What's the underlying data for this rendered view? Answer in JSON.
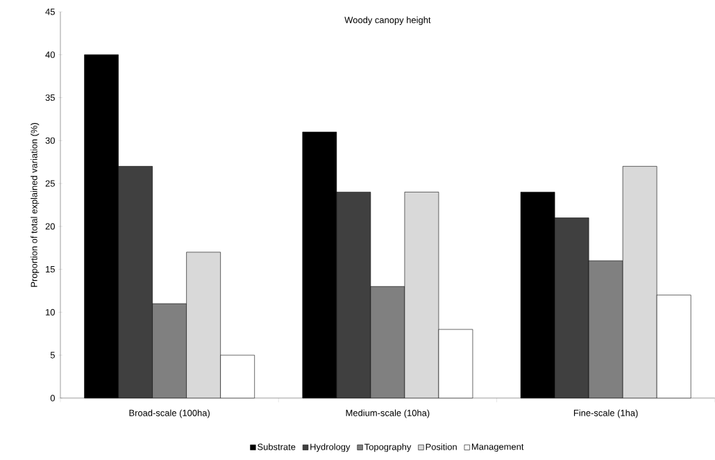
{
  "chart_data": {
    "type": "bar",
    "title": "Woody canopy height",
    "ylabel": "Proportion of total explained variation (%)",
    "categories": [
      "Broad-scale (100ha)",
      "Medium-scale (10ha)",
      "Fine-scale (1ha)"
    ],
    "series": [
      {
        "name": "Substrate",
        "color": "#000000",
        "values": [
          40,
          31,
          24
        ]
      },
      {
        "name": "Hydrology",
        "color": "#404040",
        "values": [
          27,
          24,
          21
        ]
      },
      {
        "name": "Topography",
        "color": "#808080",
        "values": [
          11,
          13,
          16
        ]
      },
      {
        "name": "Position",
        "color": "#d9d9d9",
        "values": [
          17,
          24,
          27
        ]
      },
      {
        "name": "Management",
        "color": "#ffffff",
        "values": [
          5,
          8,
          12
        ]
      }
    ],
    "ylim": [
      0,
      45
    ],
    "yticks": [
      0,
      5,
      10,
      15,
      20,
      25,
      30,
      35,
      40,
      45
    ],
    "grid": false,
    "legend": "bottom"
  }
}
